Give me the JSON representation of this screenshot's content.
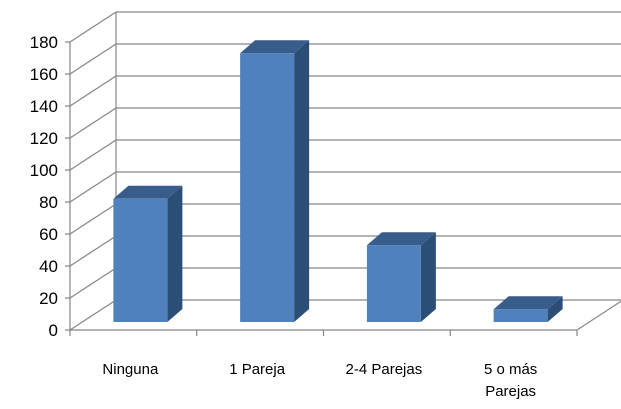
{
  "chart_data": {
    "type": "bar",
    "title": "",
    "xlabel": "",
    "ylabel": "",
    "categories": [
      "Ninguna",
      "1 Pareja",
      "2-4 Parejas",
      "5 o más Parejas"
    ],
    "category_lines": [
      [
        "Ninguna"
      ],
      [
        "1 Pareja"
      ],
      [
        "2-4 Parejas"
      ],
      [
        "5 o más",
        "Parejas"
      ]
    ],
    "values": [
      77,
      168,
      48,
      8
    ],
    "ylim": [
      0,
      180
    ],
    "yticks": [
      "0",
      "20",
      "40",
      "60",
      "80",
      "100",
      "120",
      "140",
      "160",
      "180"
    ],
    "grid": true,
    "legend": "none",
    "three_d": true,
    "colors": {
      "bar_front": "#4f81bd",
      "bar_top": "#385d8a",
      "bar_side": "#2c4d75",
      "grid": "#868686",
      "axis": "#868686",
      "text": "#000000"
    }
  }
}
